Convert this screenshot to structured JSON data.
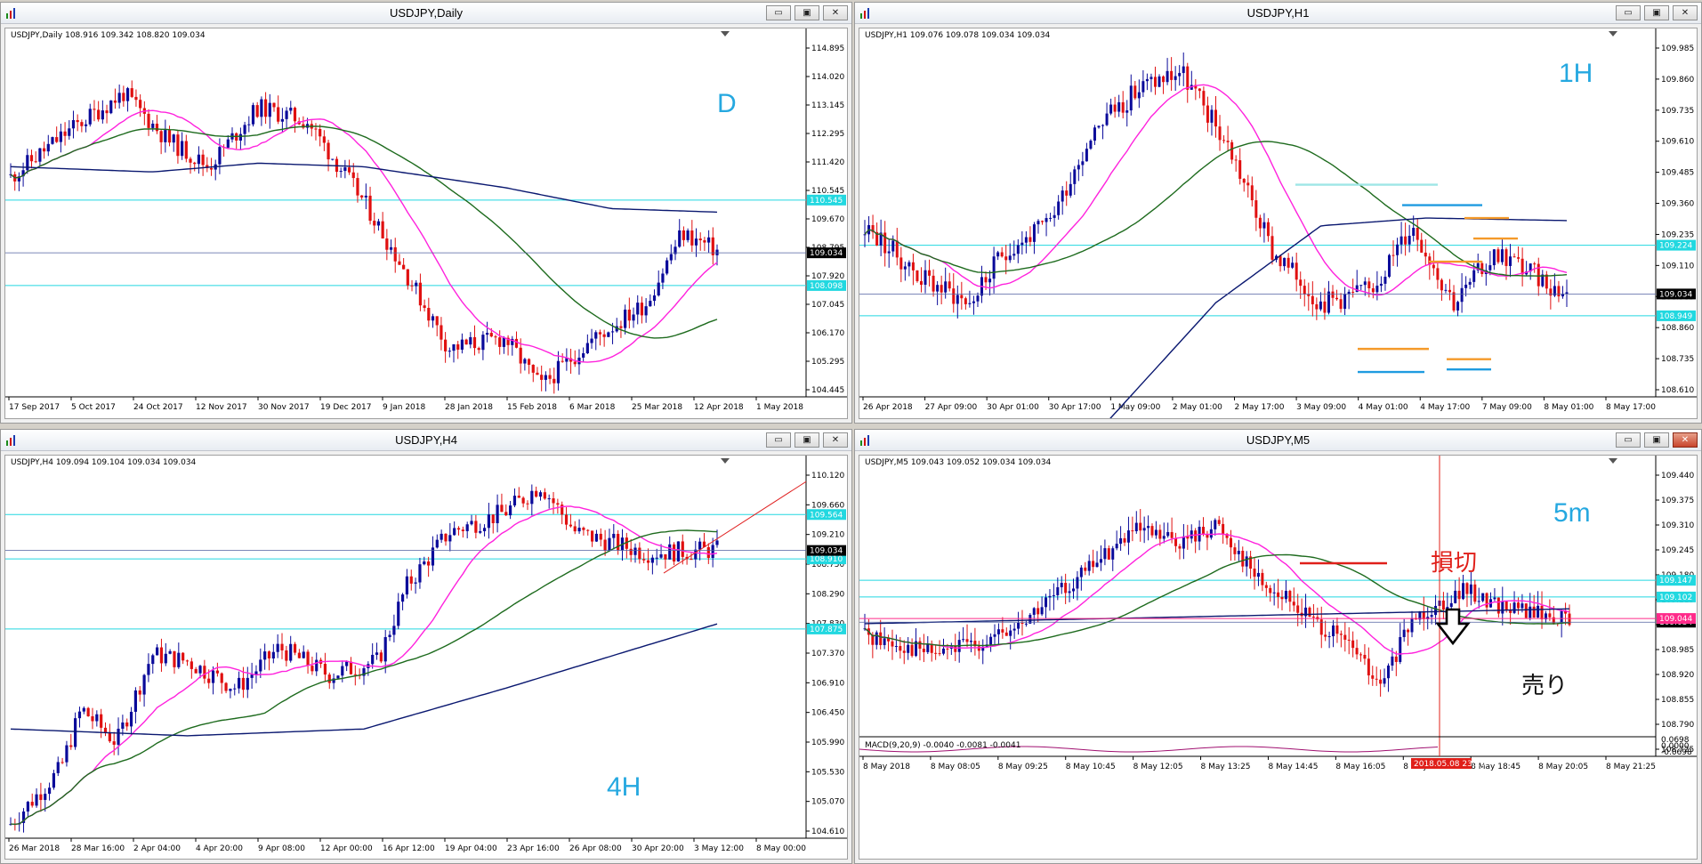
{
  "windows": [
    {
      "id": "daily",
      "title": "USDJPY,Daily",
      "info": "USDJPY,Daily  108.916 109.342 108.820 109.034",
      "label": "D",
      "ytick_labels": [
        "114.895",
        "114.020",
        "113.145",
        "112.295",
        "111.420",
        "110.545",
        "109.670",
        "108.795",
        "107.920",
        "107.045",
        "106.170",
        "105.295",
        "104.445"
      ],
      "price_tag": "109.034",
      "cyan_tags": [
        "110.545",
        "108.098"
      ],
      "xtick_labels": [
        "17 Sep 2017",
        "5 Oct 2017",
        "24 Oct 2017",
        "12 Nov 2017",
        "30 Nov 2017",
        "19 Dec 2017",
        "9 Jan 2018",
        "28 Jan 2018",
        "15 Feb 2018",
        "6 Mar 2018",
        "25 Mar 2018",
        "12 Apr 2018",
        "1 May 2018"
      ]
    },
    {
      "id": "h1",
      "title": "USDJPY,H1",
      "info": "USDJPY,H1  109.076 109.078 109.034 109.034",
      "label": "1H",
      "ytick_labels": [
        "109.985",
        "109.860",
        "109.735",
        "109.610",
        "109.485",
        "109.360",
        "109.235",
        "109.110",
        "108.985",
        "108.860",
        "108.735",
        "108.610"
      ],
      "price_tag": "109.034",
      "cyan_tags": [
        "109.224",
        "108.949"
      ],
      "xtick_labels": [
        "26 Apr 2018",
        "27 Apr 09:00",
        "30 Apr 01:00",
        "30 Apr 17:00",
        "1 May 09:00",
        "2 May 01:00",
        "2 May 17:00",
        "3 May 09:00",
        "4 May 01:00",
        "4 May 17:00",
        "7 May 09:00",
        "8 May 01:00",
        "8 May 17:00"
      ]
    },
    {
      "id": "h4",
      "title": "USDJPY,H4",
      "info": "USDJPY,H4  109.094 109.104 109.034 109.034",
      "label": "4H",
      "ytick_labels": [
        "110.120",
        "109.660",
        "109.210",
        "108.750",
        "108.290",
        "107.830",
        "107.370",
        "106.910",
        "106.450",
        "105.990",
        "105.530",
        "105.070",
        "104.610"
      ],
      "price_tag": "109.034",
      "cyan_tags": [
        "109.564",
        "108.910",
        "107.875"
      ],
      "xtick_labels": [
        "26 Mar 2018",
        "28 Mar 16:00",
        "2 Apr 04:00",
        "4 Apr 20:00",
        "9 Apr 08:00",
        "12 Apr 00:00",
        "16 Apr 12:00",
        "19 Apr 04:00",
        "23 Apr 16:00",
        "26 Apr 08:00",
        "30 Apr 20:00",
        "3 May 12:00",
        "8 May 00:00"
      ]
    },
    {
      "id": "m5",
      "title": "USDJPY,M5",
      "info": "USDJPY,M5  109.043 109.052 109.034 109.034",
      "label": "5m",
      "ytick_labels": [
        "109.440",
        "109.375",
        "109.310",
        "109.245",
        "109.180",
        "109.115",
        "109.050",
        "108.985",
        "108.920",
        "108.855",
        "108.790",
        "108.725"
      ],
      "price_tag": "109.034",
      "pink_tag": "109.044",
      "cyan_tags": [
        "109.147",
        "109.102"
      ],
      "stop_loss_text": "損切",
      "sell_text": "売り",
      "macd_info": "MACD(9,20,9) -0.0040 -0.0081 -0.0041",
      "macd_ticks": [
        "0.0698",
        "0.0000",
        "-0.0698"
      ],
      "xtick_labels": [
        "8 May 2018",
        "8 May 08:05",
        "8 May 09:25",
        "8 May 10:45",
        "8 May 12:05",
        "8 May 13:25",
        "8 May 14:45",
        "8 May 16:05",
        "8 May 17:25",
        "8 May 18:45",
        "8 May 20:05",
        "8 May 21:25"
      ],
      "time_tag": "2018.05.08 23:20"
    }
  ],
  "window_buttons": {
    "minimize": "▭",
    "restore": "▣",
    "close": "✕"
  },
  "colors": {
    "bull": "#0a0a9a",
    "bear": "#e01010",
    "ma_fast": "#ff22dd",
    "ma_mid": "#1e6b1e",
    "ma_slow": "#0a1870",
    "level": "#22d8e0",
    "label": "#25a8e0"
  }
}
